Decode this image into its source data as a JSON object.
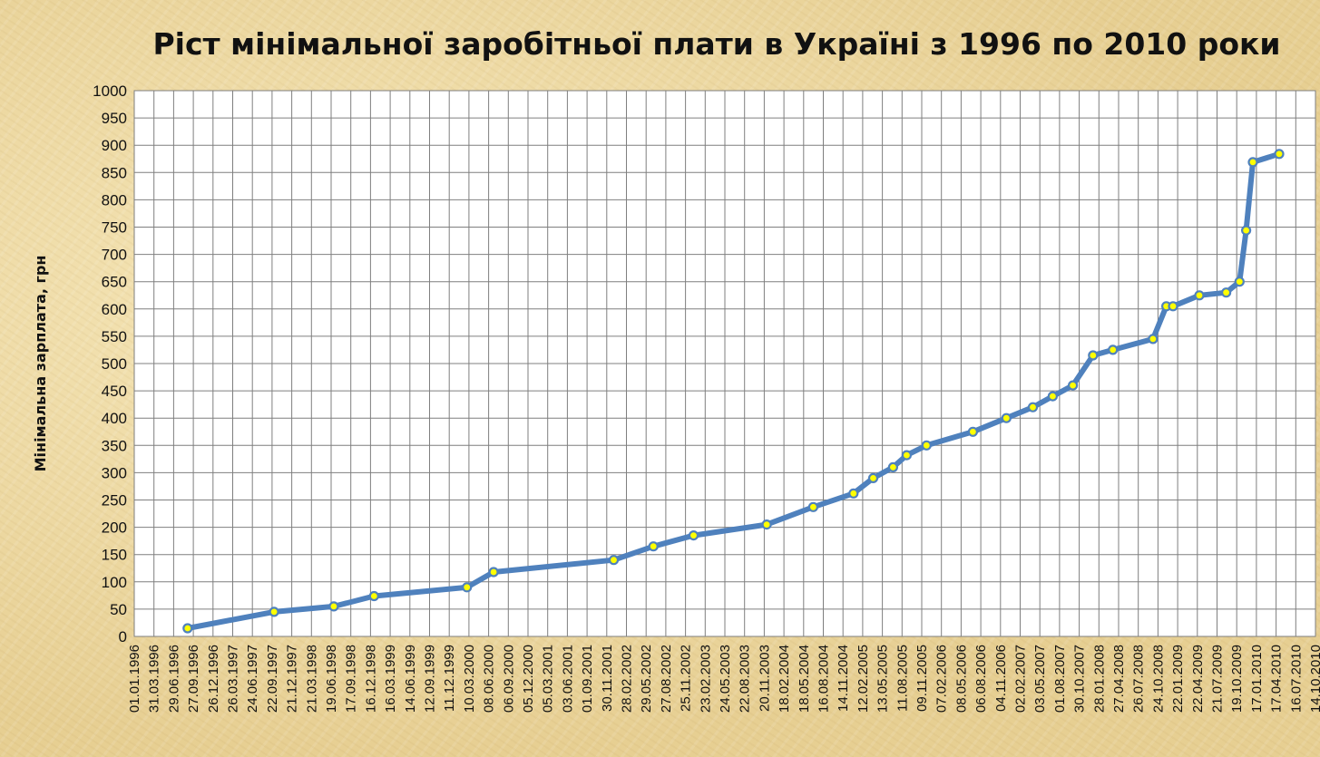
{
  "chart_data": {
    "type": "line",
    "title": "Ріст мінімальної заробітньої плати в Україні з 1996 по 2010 роки",
    "xlabel": "",
    "ylabel": "Мінімальна зарплата, грн",
    "ylim": [
      0,
      1000
    ],
    "y_ticks": [
      "0",
      "50",
      "100",
      "150",
      "200",
      "250",
      "300",
      "350",
      "400",
      "450",
      "500",
      "550",
      "600",
      "650",
      "700",
      "750",
      "800",
      "850",
      "900",
      "950",
      "1000"
    ],
    "x_ticks": [
      "01.01.1996",
      "31.03.1996",
      "29.06.1996",
      "27.09.1996",
      "26.12.1996",
      "26.03.1997",
      "24.06.1997",
      "22.09.1997",
      "21.12.1997",
      "21.03.1998",
      "19.06.1998",
      "17.09.1998",
      "16.12.1998",
      "16.03.1999",
      "14.06.1999",
      "12.09.1999",
      "11.12.1999",
      "10.03.2000",
      "08.06.2000",
      "06.09.2000",
      "05.12.2000",
      "05.03.2001",
      "03.06.2001",
      "01.09.2001",
      "30.11.2001",
      "28.02.2002",
      "29.05.2002",
      "27.08.2002",
      "25.11.2002",
      "23.02.2003",
      "24.05.2003",
      "22.08.2003",
      "20.11.2003",
      "18.02.2004",
      "18.05.2004",
      "16.08.2004",
      "14.11.2004",
      "12.02.2005",
      "13.05.2005",
      "11.08.2005",
      "09.11.2005",
      "07.02.2006",
      "08.05.2006",
      "06.08.2006",
      "04.11.2006",
      "02.02.2007",
      "03.05.2007",
      "01.08.2007",
      "30.10.2007",
      "28.01.2008",
      "27.04.2008",
      "26.07.2008",
      "24.10.2008",
      "22.01.2009",
      "22.04.2009",
      "21.07.2009",
      "19.10.2009",
      "17.01.2010",
      "17.04.2010",
      "16.07.2010",
      "14.10.2010"
    ],
    "series": [
      {
        "name": "",
        "color": "#4f81bd",
        "marker_color": "#ffff00",
        "points": [
          {
            "x": "01.09.1996",
            "y": 15
          },
          {
            "x": "01.10.1997",
            "y": 45
          },
          {
            "x": "01.07.1998",
            "y": 55
          },
          {
            "x": "01.01.1999",
            "y": 74
          },
          {
            "x": "01.03.2000",
            "y": 90
          },
          {
            "x": "01.07.2000",
            "y": 118
          },
          {
            "x": "01.01.2002",
            "y": 140
          },
          {
            "x": "01.07.2002",
            "y": 165
          },
          {
            "x": "01.01.2003",
            "y": 185
          },
          {
            "x": "01.12.2003",
            "y": 205
          },
          {
            "x": "01.07.2004",
            "y": 237
          },
          {
            "x": "01.01.2005",
            "y": 262
          },
          {
            "x": "01.04.2005",
            "y": 290
          },
          {
            "x": "01.07.2005",
            "y": 310
          },
          {
            "x": "01.09.2005",
            "y": 332
          },
          {
            "x": "01.12.2005",
            "y": 350
          },
          {
            "x": "01.07.2006",
            "y": 375
          },
          {
            "x": "01.12.2006",
            "y": 400
          },
          {
            "x": "01.04.2007",
            "y": 420
          },
          {
            "x": "01.07.2007",
            "y": 440
          },
          {
            "x": "01.10.2007",
            "y": 460
          },
          {
            "x": "01.01.2008",
            "y": 515
          },
          {
            "x": "01.04.2008",
            "y": 525
          },
          {
            "x": "01.10.2008",
            "y": 545
          },
          {
            "x": "01.12.2008",
            "y": 605
          },
          {
            "x": "01.01.2009",
            "y": 605
          },
          {
            "x": "01.05.2009",
            "y": 625
          },
          {
            "x": "01.09.2009",
            "y": 630
          },
          {
            "x": "01.11.2009",
            "y": 650
          },
          {
            "x": "01.12.2009",
            "y": 744
          },
          {
            "x": "01.01.2010",
            "y": 869
          },
          {
            "x": "01.05.2010",
            "y": 884
          }
        ]
      }
    ],
    "grid": true,
    "legend": "none"
  }
}
